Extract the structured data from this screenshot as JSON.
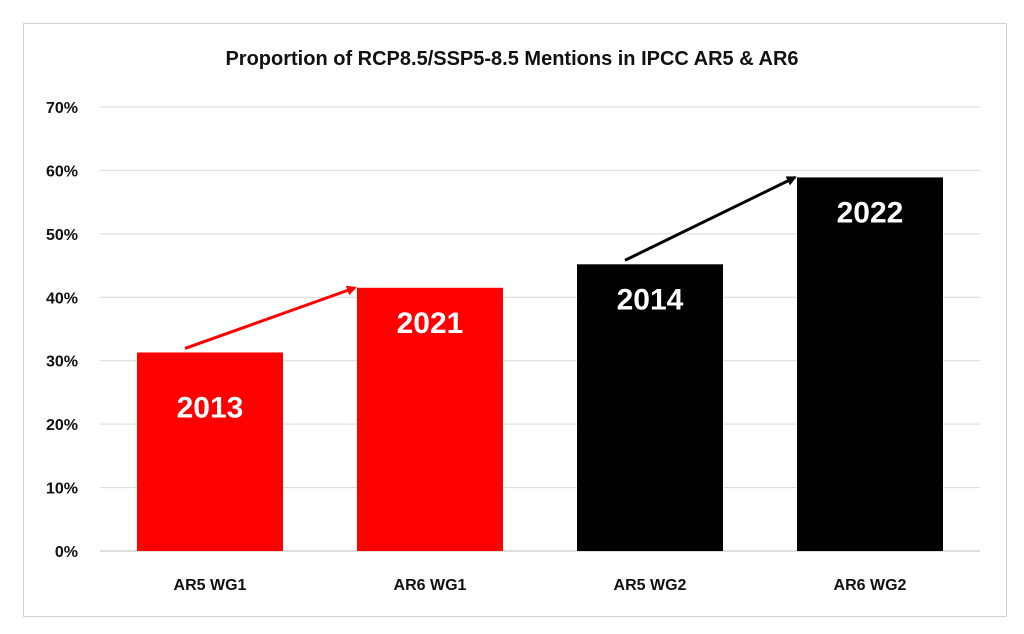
{
  "chart_data": {
    "type": "bar",
    "title": "Proportion of RCP8.5/SSP5-8.5 Mentions in IPCC AR5 & AR6",
    "xlabel": "",
    "ylabel": "",
    "categories": [
      "AR5 WG1",
      "AR6 WG1",
      "AR5 WG2",
      "AR6 WG2"
    ],
    "values": [
      31.3,
      41.5,
      45.2,
      58.9
    ],
    "bar_labels": [
      "2013",
      "2021",
      "2014",
      "2022"
    ],
    "bar_colors": [
      "#ff0000",
      "#ff0000",
      "#000000",
      "#000000"
    ],
    "ylim": [
      0,
      70
    ],
    "yticks": [
      0,
      10,
      20,
      30,
      40,
      50,
      60,
      70
    ],
    "ytick_labels": [
      "0%",
      "10%",
      "20%",
      "30%",
      "40%",
      "50%",
      "60%",
      "70%"
    ],
    "grid": true,
    "legend": "none",
    "annotations": [
      {
        "type": "arrow",
        "from_category": "AR5 WG1",
        "to_category": "AR6 WG1",
        "color": "#ff0000"
      },
      {
        "type": "arrow",
        "from_category": "AR5 WG2",
        "to_category": "AR6 WG2",
        "color": "#000000"
      }
    ]
  }
}
